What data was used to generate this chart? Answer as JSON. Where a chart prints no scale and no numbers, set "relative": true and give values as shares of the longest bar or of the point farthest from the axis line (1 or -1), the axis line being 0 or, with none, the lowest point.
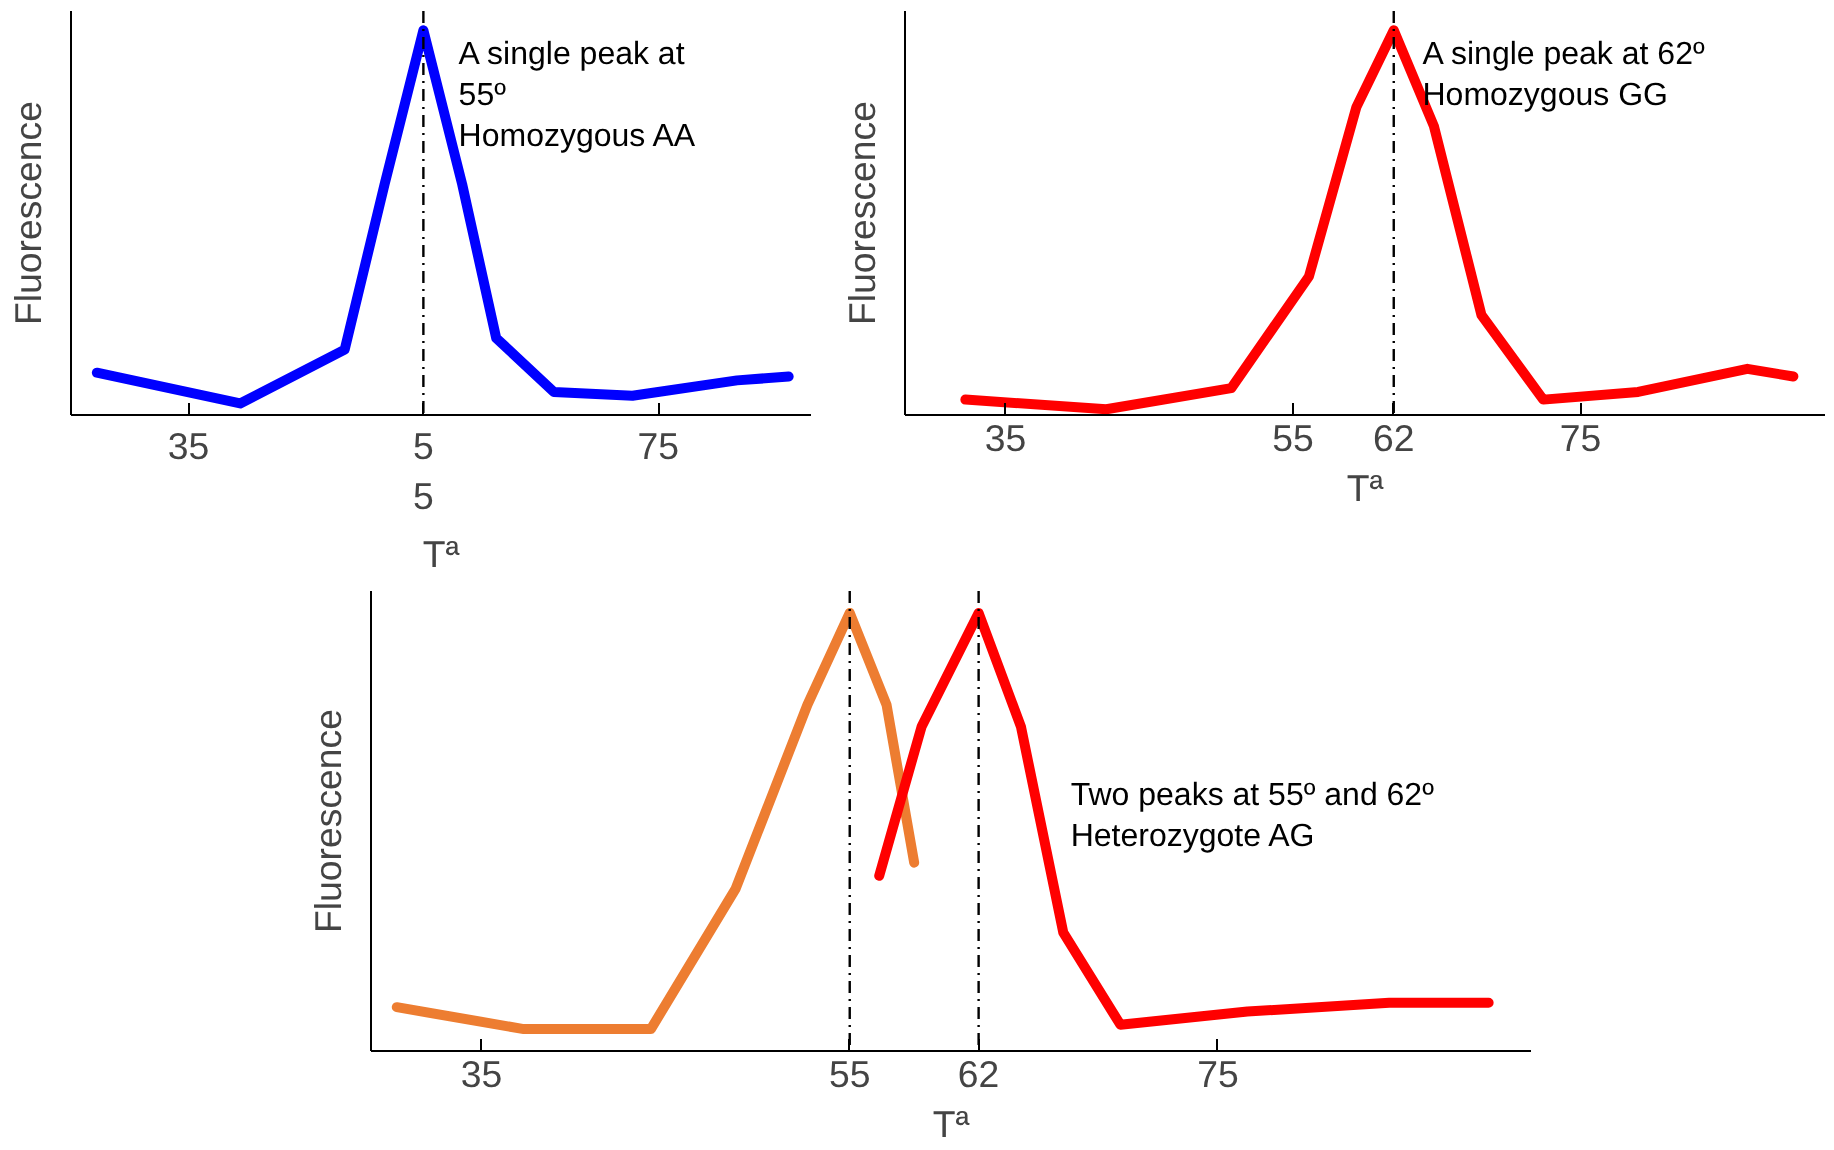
{
  "chart_data": [
    {
      "type": "line",
      "relative": true,
      "ylabel": "Fluorescence",
      "xlabel": "Tª",
      "xlim": [
        25,
        88
      ],
      "xticks": [
        35,
        {
          "value": 55,
          "label": "5\n5"
        },
        75
      ],
      "tick_labels": "x",
      "grid": false,
      "annotations": [
        "A single peak at\n 55º\nHomozygous AA"
      ],
      "ref_lines": [
        {
          "axis": "x",
          "value": 55,
          "color": "#000000",
          "line_style": "dashed"
        }
      ],
      "series": [
        {
          "color": "#0000ff",
          "x": [
            27.2,
            39.4,
            48.3,
            51.7,
            55,
            58.3,
            61.2,
            66.1,
            72.8,
            81.7,
            86.1
          ],
          "values": [
            0.11,
            0.03,
            0.17,
            0.6,
            1,
            0.6,
            0.2,
            0.06,
            0.05,
            0.09,
            0.1
          ]
        }
      ]
    },
    {
      "type": "line",
      "relative": true,
      "ylabel": "Fluorescence",
      "xlabel": "Tª",
      "xlim": [
        28,
        92
      ],
      "xticks": [
        35,
        55,
        62,
        75
      ],
      "tick_labels": "x",
      "grid": false,
      "annotations": [
        "A single peak at 62º\nHomozygous GG"
      ],
      "ref_lines": [
        {
          "axis": "x",
          "value": 62,
          "color": "#000000",
          "line_style": "dashed"
        }
      ],
      "series": [
        {
          "color": "#ff0000",
          "x": [
            32.2,
            42,
            50.7,
            56.1,
            59.4,
            62,
            64.8,
            68.1,
            72.4,
            79,
            86.6,
            89.8
          ],
          "values": [
            0.04,
            0.015,
            0.07,
            0.36,
            0.8,
            1,
            0.75,
            0.26,
            0.04,
            0.06,
            0.12,
            0.1
          ]
        }
      ]
    },
    {
      "type": "line",
      "relative": true,
      "ylabel": "Fluorescence",
      "xlabel": "Tª",
      "xlim": [
        29,
        92
      ],
      "xticks": [
        35,
        55,
        62,
        75
      ],
      "tick_labels": "x",
      "grid": false,
      "annotations": [
        "Two peaks at 55º and 62º\n Heterozygote AG"
      ],
      "ref_lines": [
        {
          "axis": "x",
          "value": 55,
          "color": "#000000",
          "line_style": "dashed"
        },
        {
          "axis": "x",
          "value": 62,
          "color": "#000000",
          "line_style": "dashed"
        }
      ],
      "series": [
        {
          "color": "#ed7d31",
          "x": [
            30.4,
            37.3,
            44.2,
            48.8,
            52.7,
            55,
            57,
            58.5
          ],
          "values": [
            0.1,
            0.05,
            0.05,
            0.37,
            0.79,
            1,
            0.79,
            0.43
          ]
        },
        {
          "color": "#ff0000",
          "x": [
            56.6,
            58.9,
            62,
            64.3,
            66.6,
            69.7,
            76.6,
            84.3,
            89.7
          ],
          "values": [
            0.4,
            0.74,
            1,
            0.74,
            0.27,
            0.06,
            0.09,
            0.11,
            0.11
          ]
        }
      ]
    }
  ]
}
